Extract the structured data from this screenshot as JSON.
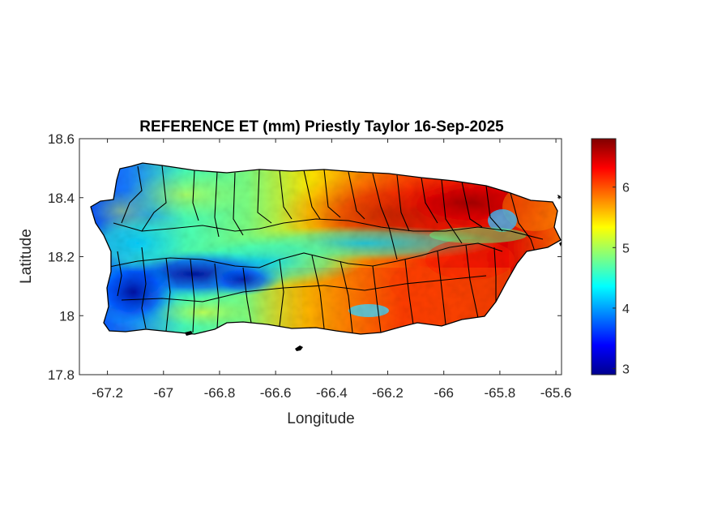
{
  "title": "REFERENCE ET (mm) Priestly Taylor 16-Sep-2025",
  "xlabel": "Longitude",
  "ylabel": "Latitude",
  "xlim": [
    -67.3,
    -65.58
  ],
  "ylim": [
    17.8,
    18.6
  ],
  "xticks": [
    {
      "value": -67.2,
      "label": "-67.2"
    },
    {
      "value": -67.0,
      "label": "-67"
    },
    {
      "value": -66.8,
      "label": "-66.8"
    },
    {
      "value": -66.6,
      "label": "-66.6"
    },
    {
      "value": -66.4,
      "label": "-66.4"
    },
    {
      "value": -66.2,
      "label": "-66.2"
    },
    {
      "value": -66.0,
      "label": "-66"
    },
    {
      "value": -65.8,
      "label": "-65.8"
    },
    {
      "value": -65.6,
      "label": "-65.6"
    }
  ],
  "yticks": [
    {
      "value": 17.8,
      "label": "17.8"
    },
    {
      "value": 18.0,
      "label": "18"
    },
    {
      "value": 18.2,
      "label": "18.2"
    },
    {
      "value": 18.4,
      "label": "18.4"
    },
    {
      "value": 18.6,
      "label": "18.6"
    }
  ],
  "colorbar": {
    "colormap": "jet",
    "range": [
      2.9,
      6.8
    ],
    "ticks": [
      {
        "value": 3,
        "label": "3"
      },
      {
        "value": 4,
        "label": "4"
      },
      {
        "value": 5,
        "label": "5"
      },
      {
        "value": 6,
        "label": "6"
      }
    ]
  },
  "outline_color": "#000000"
}
